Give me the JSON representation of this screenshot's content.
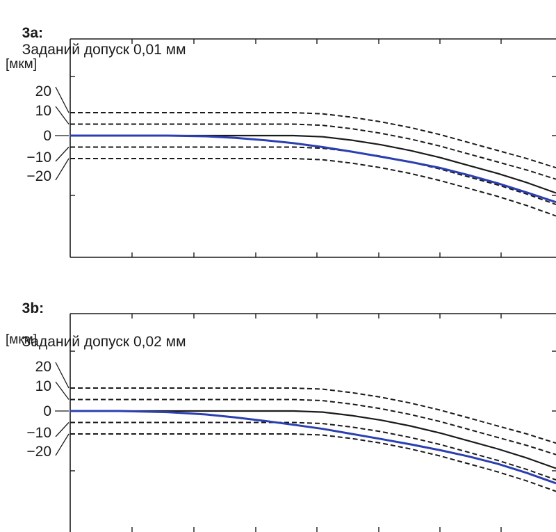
{
  "chart_data": [
    {
      "type": "line",
      "id": "3a",
      "title_prefix": "3a:",
      "title": "Заданий допуск 0,01 мм",
      "unit_label": "[мкм]",
      "tick_labels": [
        "20",
        "10",
        "0",
        "−10",
        "−20"
      ],
      "series": [
        {
          "role": "upper-band-outer",
          "style": "dashed",
          "color": "#1a1a1a",
          "x": [
            0,
            0.3,
            0.46,
            0.52,
            0.58,
            0.64,
            0.7,
            0.76,
            0.82,
            0.88,
            0.94,
            1.0
          ],
          "y": [
            10,
            10,
            10,
            9.5,
            8,
            6,
            3.5,
            0.5,
            -3,
            -6.5,
            -10,
            -14
          ]
        },
        {
          "role": "upper-band-inner",
          "style": "dashed",
          "color": "#1a1a1a",
          "x": [
            0,
            0.3,
            0.46,
            0.52,
            0.58,
            0.64,
            0.7,
            0.76,
            0.82,
            0.88,
            0.94,
            1.0
          ],
          "y": [
            5,
            5,
            5,
            4.5,
            3,
            1,
            -1.5,
            -4.5,
            -8,
            -11.5,
            -15,
            -19
          ]
        },
        {
          "role": "nominal-contour",
          "style": "solid",
          "color": "#1a1a1a",
          "x": [
            0,
            0.3,
            0.46,
            0.52,
            0.58,
            0.64,
            0.7,
            0.76,
            0.82,
            0.88,
            0.94,
            1.0
          ],
          "y": [
            0,
            0,
            0,
            -0.5,
            -2,
            -4,
            -6.5,
            -9.5,
            -13,
            -16.5,
            -20.5,
            -25
          ]
        },
        {
          "role": "lower-band-inner",
          "style": "dashed",
          "color": "#1a1a1a",
          "x": [
            0,
            0.3,
            0.46,
            0.52,
            0.58,
            0.64,
            0.7,
            0.76,
            0.82,
            0.88,
            0.94,
            1.0
          ],
          "y": [
            -5,
            -5,
            -5,
            -5.5,
            -7,
            -9,
            -11.5,
            -14.5,
            -18,
            -21.5,
            -25.5,
            -30
          ]
        },
        {
          "role": "lower-band-outer",
          "style": "dashed",
          "color": "#1a1a1a",
          "x": [
            0,
            0.3,
            0.46,
            0.52,
            0.58,
            0.64,
            0.7,
            0.76,
            0.82,
            0.88,
            0.94,
            1.0
          ],
          "y": [
            -10,
            -10,
            -10,
            -10.5,
            -12,
            -14,
            -16.5,
            -19.5,
            -23,
            -26.5,
            -30.5,
            -35
          ]
        },
        {
          "role": "actual-path",
          "style": "solid",
          "color": "#2b3fb0",
          "x": [
            0,
            0.1,
            0.2,
            0.28,
            0.34,
            0.4,
            0.46,
            0.52,
            0.58,
            0.64,
            0.7,
            0.76,
            0.82,
            0.88,
            0.94,
            1.0
          ],
          "y": [
            0,
            0,
            0,
            -0.3,
            -1,
            -2,
            -3.3,
            -5,
            -7,
            -9.2,
            -11.5,
            -14,
            -17.2,
            -20.8,
            -24.8,
            -29
          ]
        }
      ]
    },
    {
      "type": "line",
      "id": "3b",
      "title_prefix": "3b:",
      "title": "Заданий допуск 0,02 мм",
      "unit_label": "[мкм]",
      "tick_labels": [
        "20",
        "10",
        "0",
        "−10",
        "−20"
      ],
      "series": [
        {
          "role": "upper-band-outer",
          "style": "dashed",
          "color": "#1a1a1a",
          "x": [
            0,
            0.3,
            0.46,
            0.52,
            0.58,
            0.64,
            0.7,
            0.76,
            0.82,
            0.88,
            0.94,
            1.0
          ],
          "y": [
            10,
            10,
            10,
            9.5,
            8,
            6,
            3.5,
            0.5,
            -3,
            -6.5,
            -10,
            -14
          ]
        },
        {
          "role": "upper-band-inner",
          "style": "dashed",
          "color": "#1a1a1a",
          "x": [
            0,
            0.3,
            0.46,
            0.52,
            0.58,
            0.64,
            0.7,
            0.76,
            0.82,
            0.88,
            0.94,
            1.0
          ],
          "y": [
            5,
            5,
            5,
            4.5,
            3,
            1,
            -1.5,
            -4.5,
            -8,
            -11.5,
            -15,
            -19
          ]
        },
        {
          "role": "nominal-contour",
          "style": "solid",
          "color": "#1a1a1a",
          "x": [
            0,
            0.3,
            0.46,
            0.52,
            0.58,
            0.64,
            0.7,
            0.76,
            0.82,
            0.88,
            0.94,
            1.0
          ],
          "y": [
            0,
            0,
            0,
            -0.5,
            -2,
            -4,
            -6.5,
            -9.5,
            -13,
            -16.5,
            -20.5,
            -25
          ]
        },
        {
          "role": "lower-band-inner",
          "style": "dashed",
          "color": "#1a1a1a",
          "x": [
            0,
            0.3,
            0.46,
            0.52,
            0.58,
            0.64,
            0.7,
            0.76,
            0.82,
            0.88,
            0.94,
            1.0
          ],
          "y": [
            -5,
            -5,
            -5,
            -5.5,
            -7,
            -9,
            -11.5,
            -14.5,
            -18,
            -21.5,
            -25.5,
            -30
          ]
        },
        {
          "role": "lower-band-outer",
          "style": "dashed",
          "color": "#1a1a1a",
          "x": [
            0,
            0.3,
            0.46,
            0.52,
            0.58,
            0.64,
            0.7,
            0.76,
            0.82,
            0.88,
            0.94,
            1.0
          ],
          "y": [
            -10,
            -10,
            -10,
            -10.5,
            -12,
            -14,
            -16.5,
            -19.5,
            -23,
            -26.5,
            -30.5,
            -35
          ]
        },
        {
          "role": "actual-path",
          "style": "solid",
          "color": "#2b3fb0",
          "x": [
            0,
            0.1,
            0.2,
            0.28,
            0.34,
            0.4,
            0.46,
            0.52,
            0.58,
            0.64,
            0.7,
            0.76,
            0.82,
            0.88,
            0.94,
            1.0
          ],
          "y": [
            0,
            0,
            -0.5,
            -1.5,
            -2.8,
            -4.3,
            -6,
            -7.8,
            -10,
            -12.2,
            -14.5,
            -17,
            -19.8,
            -23,
            -27,
            -31.5
          ]
        }
      ]
    }
  ]
}
